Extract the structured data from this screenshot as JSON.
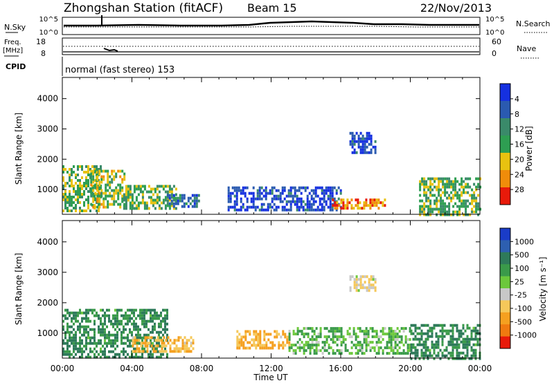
{
  "header": {
    "station": "Zhongshan Station (fitACF)",
    "beam": "Beam 15",
    "date": "22/Nov/2013"
  },
  "noise_panel": {
    "left_label": "N.Sky",
    "right_label": "N.Search",
    "y_top_tick": "10^5",
    "y_bottom_tick": "10^0"
  },
  "freq_panel": {
    "left_label_1": "Freq.",
    "left_label_2": "[MHz]",
    "left_ticks": [
      "18",
      "8"
    ],
    "right_label": "Nave",
    "right_ticks": [
      "60",
      "0"
    ]
  },
  "cpid": {
    "label": "CPID",
    "value": "normal (fast stereo) 153"
  },
  "axes": {
    "ylabel": "Slant Range [km]",
    "yticks": [
      "1000",
      "2000",
      "3000",
      "4000"
    ],
    "xticks": [
      "00:00",
      "04:00",
      "08:00",
      "12:00",
      "16:00",
      "20:00",
      "00:00"
    ],
    "xlabel": "Time UT"
  },
  "chart_data": [
    {
      "type": "heatmap",
      "title": "",
      "xlabel": "Time UT",
      "ylabel": "Slant Range [km]",
      "xlim": [
        0,
        24
      ],
      "ylim": [
        180,
        4700
      ],
      "colorbar": {
        "label": "Power [dB]",
        "ticks": [
          "4",
          "8",
          "12",
          "16",
          "20",
          "24",
          "28"
        ],
        "colors": [
          "#1530e0",
          "#2a5ab0",
          "#3a8a6a",
          "#2e9e52",
          "#e8c210",
          "#f08c0a",
          "#e81a0a"
        ]
      },
      "regions": [
        {
          "t": [
            0.0,
            2.2
          ],
          "range": [
            250,
            1800
          ],
          "dB": 16
        },
        {
          "t": [
            1.6,
            3.6
          ],
          "range": [
            450,
            1650
          ],
          "dB": 18
        },
        {
          "t": [
            3.5,
            6.5
          ],
          "range": [
            400,
            1150
          ],
          "dB": 16
        },
        {
          "t": [
            6.0,
            7.8
          ],
          "range": [
            400,
            850
          ],
          "dB": 10
        },
        {
          "t": [
            9.5,
            16.0
          ],
          "range": [
            300,
            1100
          ],
          "dB": 6
        },
        {
          "t": [
            15.5,
            18.5
          ],
          "range": [
            350,
            700
          ],
          "dB": 24
        },
        {
          "t": [
            16.5,
            18.0
          ],
          "range": [
            2200,
            2900
          ],
          "dB": 6
        },
        {
          "t": [
            20.5,
            24.0
          ],
          "range": [
            200,
            1400
          ],
          "dB": 16
        }
      ]
    },
    {
      "type": "heatmap",
      "title": "",
      "xlabel": "Time UT",
      "ylabel": "Slant Range [km]",
      "xlim": [
        0,
        24
      ],
      "ylim": [
        180,
        4700
      ],
      "colorbar": {
        "label": "Velocity [m s⁻¹]",
        "ticks": [
          "1000",
          "500",
          "100",
          "25",
          "-25",
          "-100",
          "-500",
          "-1000"
        ],
        "colors": [
          "#1a3cc8",
          "#2d5fb0",
          "#2e7a5a",
          "#3a9a4a",
          "#6cc83c",
          "#c8c8c8",
          "#f5c85a",
          "#f5a020",
          "#f07a10",
          "#e81a0a"
        ]
      },
      "regions": [
        {
          "t": [
            0.0,
            6.0
          ],
          "range": [
            250,
            1800
          ],
          "velocity": 100
        },
        {
          "t": [
            4.0,
            7.5
          ],
          "range": [
            400,
            900
          ],
          "velocity": -100
        },
        {
          "t": [
            10.0,
            13.0
          ],
          "range": [
            500,
            1100
          ],
          "velocity": -100
        },
        {
          "t": [
            13.0,
            20.0
          ],
          "range": [
            300,
            1200
          ],
          "velocity": 25
        },
        {
          "t": [
            16.5,
            18.0
          ],
          "range": [
            2400,
            2900
          ],
          "velocity": -25
        },
        {
          "t": [
            20.0,
            24.0
          ],
          "range": [
            200,
            1300
          ],
          "velocity": 100
        }
      ]
    }
  ]
}
